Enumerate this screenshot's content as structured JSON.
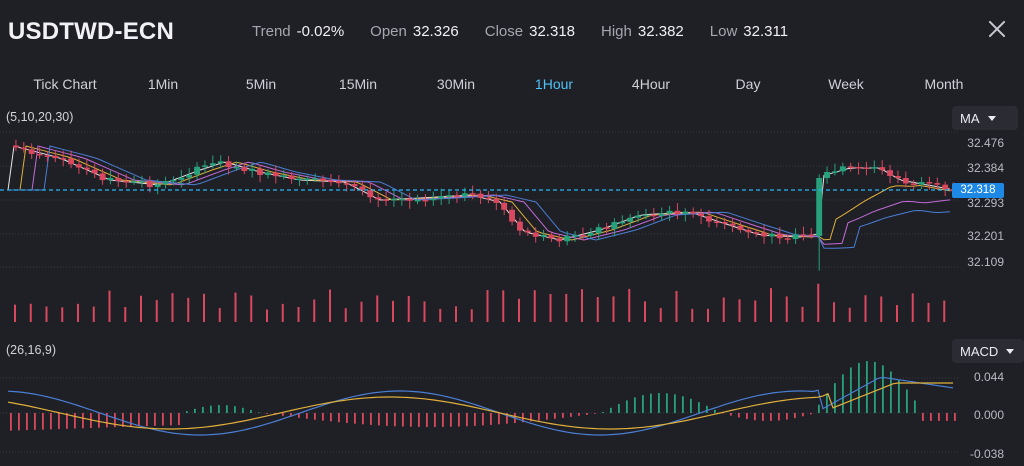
{
  "header": {
    "symbol": "USDTWD-ECN",
    "stats": [
      {
        "label": "Trend",
        "value": "-0.02%"
      },
      {
        "label": "Open",
        "value": "32.326"
      },
      {
        "label": "Close",
        "value": "32.318"
      },
      {
        "label": "High",
        "value": "32.382"
      },
      {
        "label": "Low",
        "value": "32.311"
      }
    ]
  },
  "timeframes": [
    "Tick Chart",
    "1Min",
    "5Min",
    "15Min",
    "30Min",
    "1Hour",
    "4Hour",
    "Day",
    "Week",
    "Month"
  ],
  "active_timeframe": "1Hour",
  "price_panel": {
    "indicator_params": "(5,10,20,30)",
    "indicator": "MA",
    "y_labels": [
      "32.476",
      "32.384",
      "32.293",
      "32.201",
      "32.109"
    ],
    "current_price": "32.318"
  },
  "macd_panel": {
    "indicator_params": "(26,16,9)",
    "indicator": "MACD",
    "y_labels": [
      "0.044",
      "0.000",
      "-0.038"
    ]
  },
  "colors": {
    "background": "#1f1f26",
    "up": "#26a17b",
    "down": "#d9485e",
    "active_tab": "#4fc3f7",
    "current_price_line": "#29b6f6"
  }
}
